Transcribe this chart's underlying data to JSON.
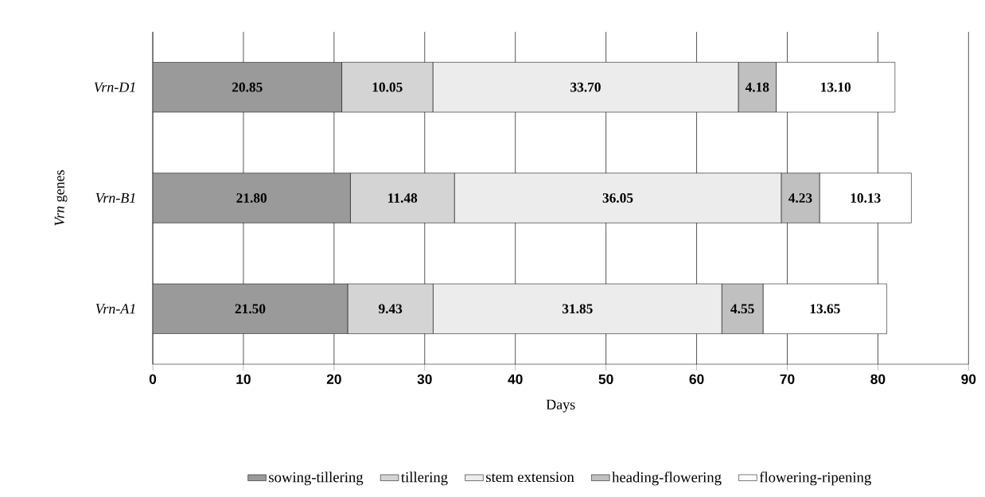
{
  "chart_data": {
    "type": "bar",
    "orientation": "horizontal",
    "stacked": true,
    "categories": [
      "Vrn-D1",
      "Vrn-B1",
      "Vrn-A1"
    ],
    "xlabel": "Days",
    "ylabel": "*Vrn* genes",
    "xlim": [
      0,
      90
    ],
    "xticks": [
      0,
      10,
      20,
      30,
      40,
      50,
      60,
      70,
      80,
      90
    ],
    "grid": "x",
    "legend": "bottom",
    "series": [
      {
        "name": "sowing-tillering",
        "color": "#9a9a9a",
        "values": [
          20.85,
          21.8,
          21.5
        ],
        "value_labels": [
          "20.85",
          "21.80",
          "21.50"
        ]
      },
      {
        "name": "tillering",
        "color": "#d4d4d4",
        "values": [
          10.05,
          11.48,
          9.43
        ],
        "value_labels": [
          "10.05",
          "11.48",
          "9.43"
        ]
      },
      {
        "name": "stem extension",
        "color": "#ececec",
        "values": [
          33.7,
          36.05,
          31.85
        ],
        "value_labels": [
          "33.70",
          "36.05",
          "31.85"
        ]
      },
      {
        "name": "heading-flowering",
        "color": "#c0c0c0",
        "values": [
          4.18,
          4.23,
          4.55
        ],
        "value_labels": [
          "4.18",
          "4.23",
          "4.55"
        ]
      },
      {
        "name": "flowering-ripening",
        "color": "#ffffff",
        "values": [
          13.1,
          10.13,
          13.65
        ],
        "value_labels": [
          "13.10",
          "10.13",
          "13.65"
        ]
      }
    ]
  }
}
